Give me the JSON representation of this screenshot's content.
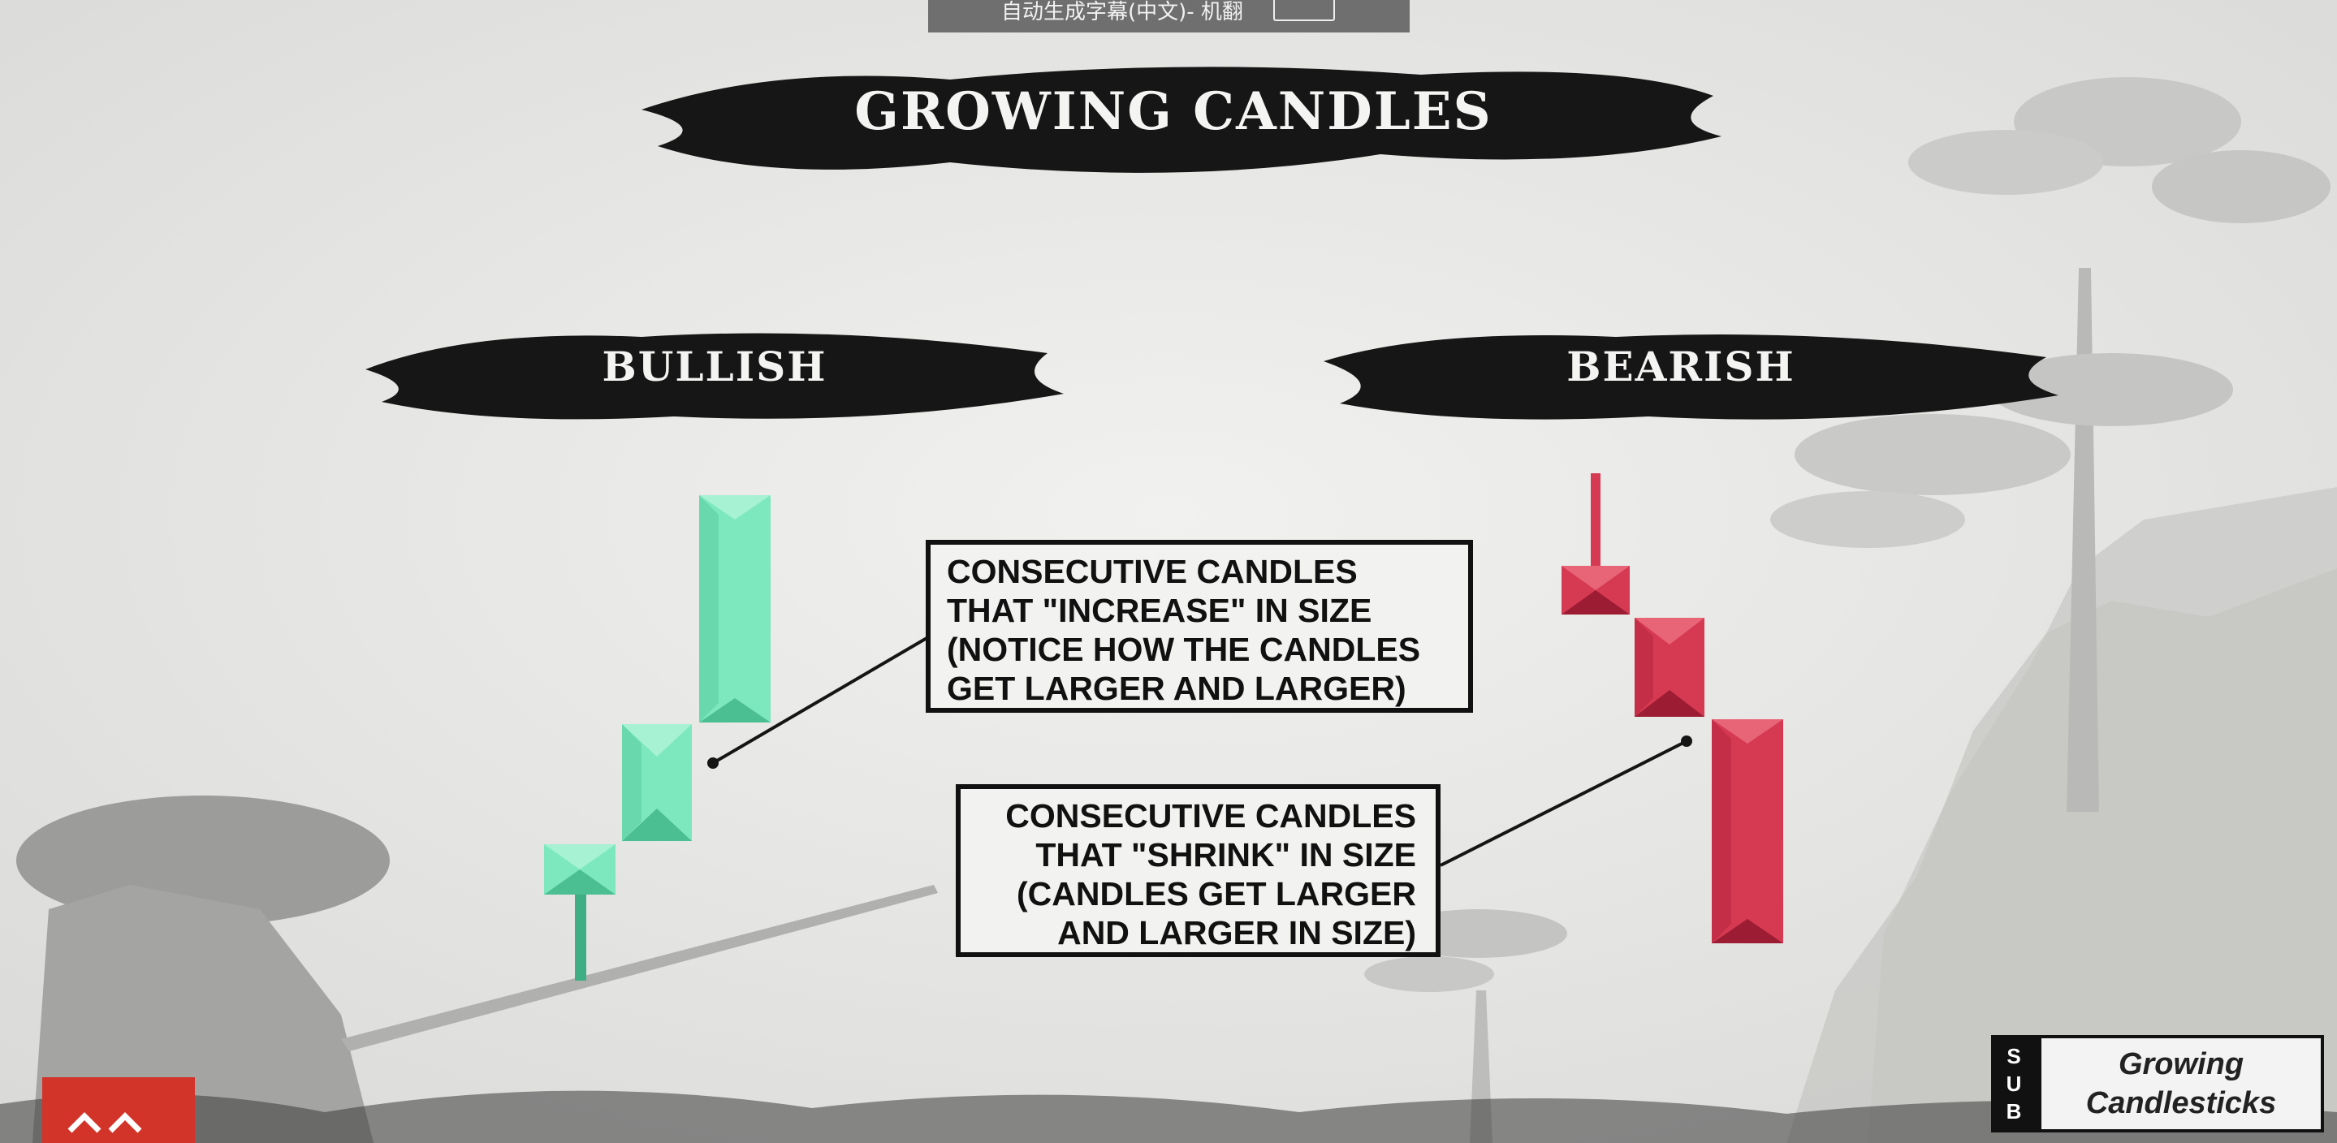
{
  "top_bar": {
    "text": "自动生成字幕(中文)- 机翻"
  },
  "title": "GROWING CANDLES",
  "bullish": {
    "label": "BULLISH",
    "callout": "CONSECUTIVE CANDLES\nTHAT \"INCREASE\" IN SIZE\n(NOTICE HOW THE CANDLES\nGET LARGER AND LARGER)"
  },
  "bearish": {
    "label": "BEARISH",
    "callout": "CONSECUTIVE CANDLES\nTHAT \"SHRINK\" IN SIZE\n(CANDLES GET LARGER\nAND LARGER IN SIZE)"
  },
  "badge": {
    "letters": [
      "S",
      "U",
      "B"
    ],
    "line1": "Growing",
    "line2": "Candlesticks"
  },
  "colors": {
    "bull_body": "#7de8bd",
    "bull_dark": "#3fae85",
    "bear_body": "#d63a52",
    "bear_dark": "#9c1d33",
    "ink": "#151515",
    "background": "#e9e9e7"
  },
  "icons": {
    "corner_logo": "chevron-logo-icon"
  }
}
